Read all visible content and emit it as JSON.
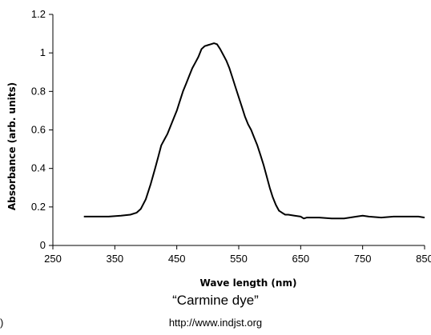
{
  "caption": "“Carmine dye”",
  "source_url": "http://www.indjst.org",
  "stray_mark": ")",
  "chart_data": {
    "type": "line",
    "title": "",
    "xlabel": "Wave length (nm)",
    "ylabel": "Absorbance (arb. units)",
    "xlim": [
      250,
      850
    ],
    "ylim": [
      0,
      1.2
    ],
    "xticks": [
      250,
      350,
      450,
      550,
      650,
      750,
      850
    ],
    "yticks": [
      0,
      0.2,
      0.4,
      0.6,
      0.8,
      1,
      1.2
    ],
    "ytick_labels": [
      "0",
      "0.2",
      "0.4",
      "0.6",
      "0.8",
      "1",
      "1.2"
    ],
    "grid": false,
    "color": "#000000",
    "series": [
      {
        "x": [
          300,
          320,
          340,
          360,
          375,
          385,
          392,
          400,
          408,
          415,
          420,
          425,
          430,
          435,
          440,
          445,
          450,
          455,
          460,
          465,
          470,
          475,
          480,
          485,
          490,
          495,
          500,
          505,
          510,
          515,
          520,
          525,
          530,
          535,
          540,
          545,
          550,
          555,
          560,
          565,
          570,
          575,
          580,
          585,
          590,
          595,
          600,
          605,
          610,
          615,
          620,
          625,
          630,
          640,
          650,
          655,
          660,
          680,
          700,
          720,
          740,
          750,
          760,
          780,
          800,
          820,
          840,
          850
        ],
        "y": [
          0.15,
          0.15,
          0.15,
          0.155,
          0.16,
          0.17,
          0.19,
          0.24,
          0.32,
          0.4,
          0.46,
          0.52,
          0.55,
          0.58,
          0.62,
          0.66,
          0.7,
          0.75,
          0.8,
          0.84,
          0.88,
          0.92,
          0.95,
          0.98,
          1.02,
          1.035,
          1.04,
          1.045,
          1.05,
          1.045,
          1.02,
          0.99,
          0.96,
          0.92,
          0.87,
          0.82,
          0.77,
          0.72,
          0.67,
          0.63,
          0.6,
          0.56,
          0.52,
          0.47,
          0.42,
          0.36,
          0.3,
          0.25,
          0.21,
          0.18,
          0.17,
          0.16,
          0.16,
          0.155,
          0.15,
          0.14,
          0.145,
          0.145,
          0.14,
          0.14,
          0.15,
          0.155,
          0.15,
          0.145,
          0.15,
          0.15,
          0.15,
          0.145
        ]
      }
    ]
  }
}
